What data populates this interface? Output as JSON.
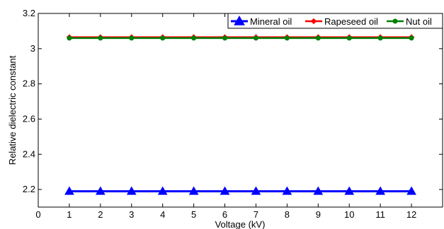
{
  "chart_data": {
    "type": "line",
    "title": "",
    "xlabel": "Voltage (kV)",
    "ylabel": "Relative dielectric  constant",
    "xlim": [
      0,
      13
    ],
    "ylim": [
      2.1,
      3.2
    ],
    "xticks": [
      0,
      1,
      2,
      3,
      4,
      5,
      6,
      7,
      8,
      9,
      10,
      11,
      12
    ],
    "yticks": [
      2.2,
      2.4,
      2.6,
      2.8,
      3.0,
      3.2
    ],
    "ytick_labels": [
      "2.2",
      "2.4",
      "2.6",
      "2.8",
      "3",
      "3.2"
    ],
    "grid": false,
    "legend_placement": "top-right",
    "x": [
      1,
      2,
      3,
      4,
      5,
      6,
      7,
      8,
      9,
      10,
      11,
      12
    ],
    "series": [
      {
        "name": "Mineral oil",
        "color": "#0000ff",
        "marker": "triangle",
        "values": [
          2.19,
          2.19,
          2.19,
          2.19,
          2.19,
          2.19,
          2.19,
          2.19,
          2.19,
          2.19,
          2.19,
          2.19
        ]
      },
      {
        "name": "Rapeseed oil",
        "color": "#ff0000",
        "marker": "diamond",
        "values": [
          3.065,
          3.065,
          3.065,
          3.065,
          3.065,
          3.065,
          3.065,
          3.065,
          3.065,
          3.065,
          3.065,
          3.065
        ]
      },
      {
        "name": "Nut oil",
        "color": "#008000",
        "marker": "circle",
        "values": [
          3.06,
          3.06,
          3.06,
          3.06,
          3.06,
          3.06,
          3.06,
          3.06,
          3.06,
          3.06,
          3.06,
          3.06
        ]
      }
    ]
  }
}
